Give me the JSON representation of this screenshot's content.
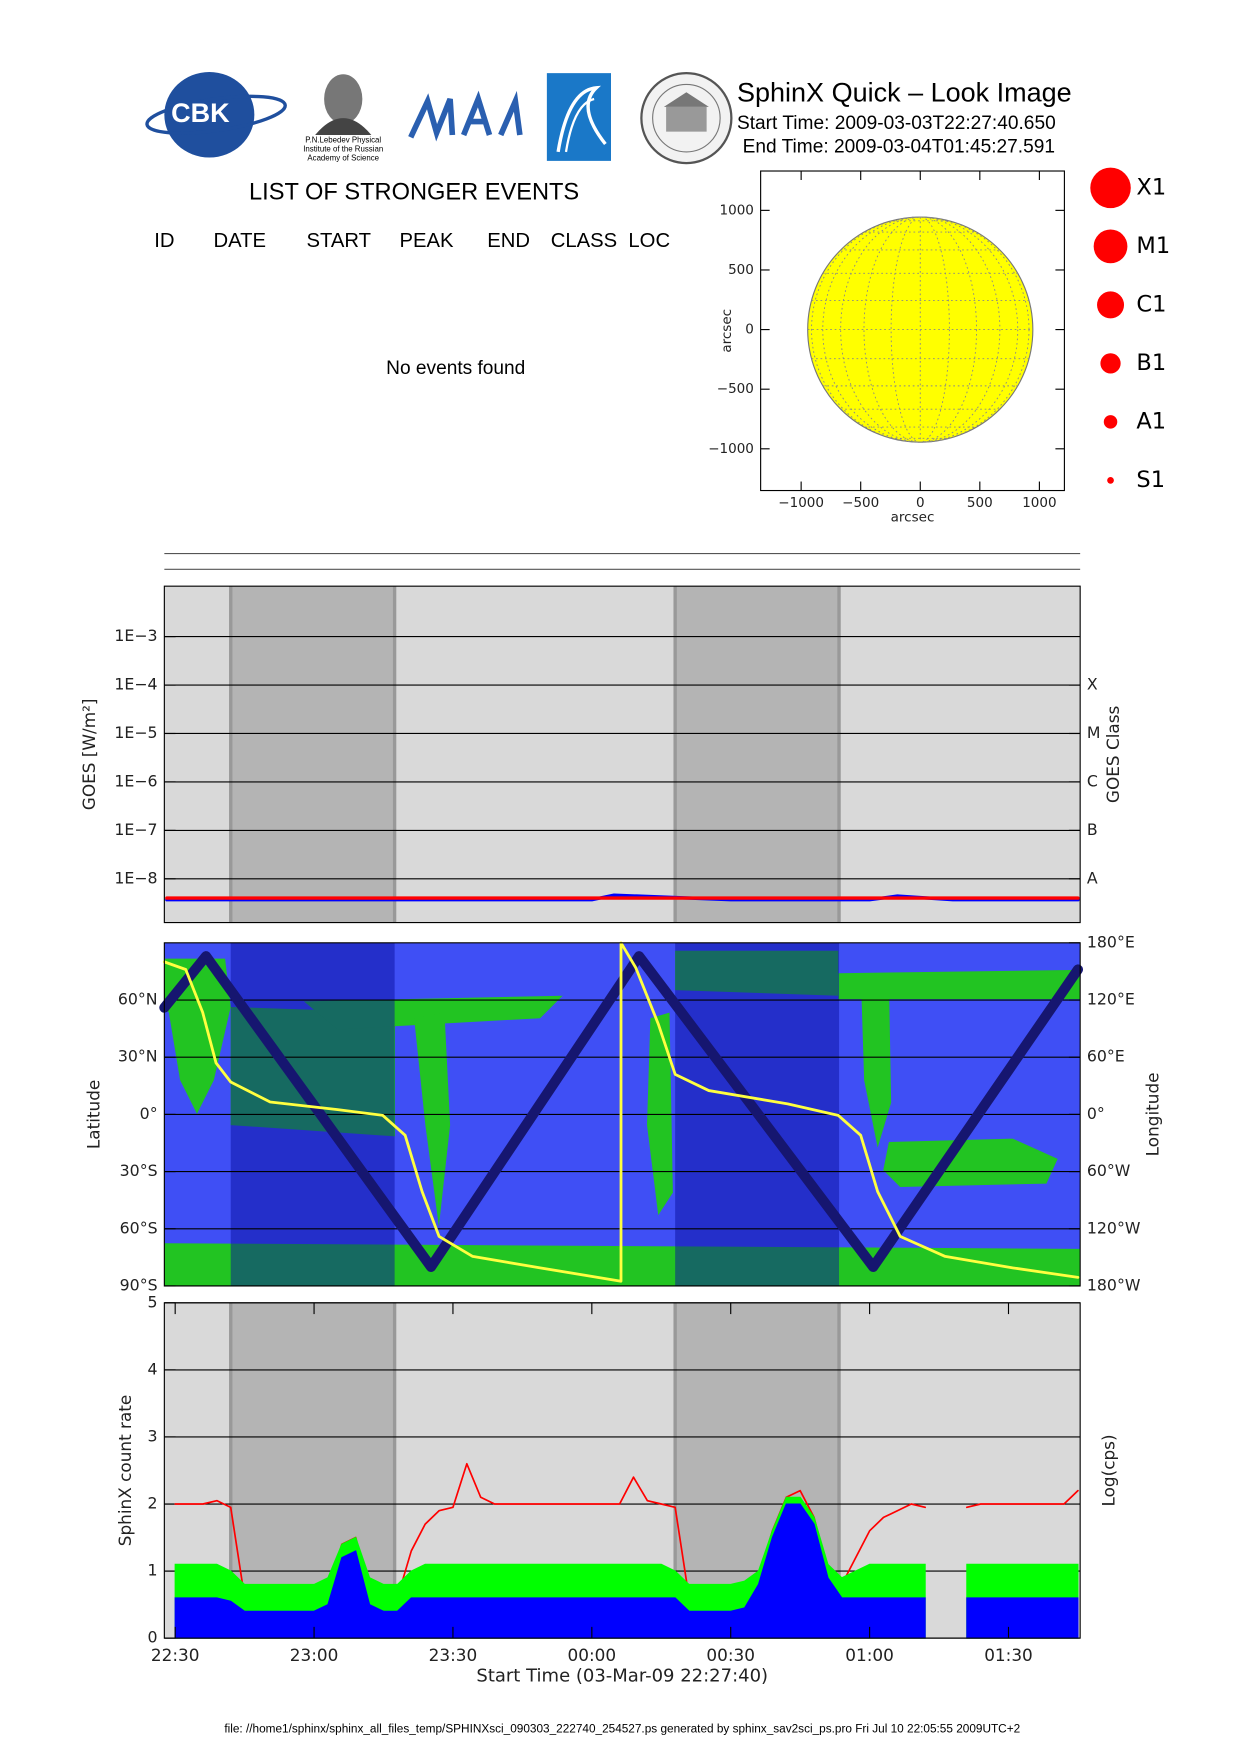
{
  "header": {
    "logo_text": [
      "CBK",
      "P.N.Lebedev Physical",
      "Institute of the Russian",
      "Academy of Science"
    ],
    "title": "SphinX Quick – Look Image",
    "start_time": "Start Time: 2009-03-03T22:27:40.650",
    "end_time": "End Time: 2009-03-04T01:45:27.591"
  },
  "events": {
    "title": "LIST OF STRONGER EVENTS",
    "columns": [
      "ID",
      "DATE",
      "START",
      "PEAK",
      "END",
      "CLASS",
      "LOC"
    ],
    "message": "No events found"
  },
  "chart_data": [
    {
      "type": "disk",
      "xlabel": "arcsec",
      "ylabel": "arcsec",
      "xlim": [
        -1340,
        1210
      ],
      "ylim": [
        -1350,
        1330
      ],
      "xticks": [
        {
          "value": -1000,
          "label": "−1000"
        },
        {
          "value": -500,
          "label": "−500"
        },
        0,
        500,
        1000
      ],
      "yticks": [
        {
          "value": -1000,
          "label": "−1000"
        },
        {
          "value": -500,
          "label": "−500"
        },
        0,
        500,
        1000
      ],
      "center": [
        0,
        0
      ],
      "radius": 945,
      "color": "#ffff00",
      "legend": [
        "X1",
        "M1",
        "C1",
        "B1",
        "A1",
        "S1"
      ],
      "legend_color": "#ff0000"
    },
    {
      "type": "line",
      "ylabel": "GOES [W/m²]",
      "y2label": "GOES Class",
      "ylog": true,
      "y2log": true,
      "xlim": [
        22.461,
        25.758
      ],
      "ylim": [
        1.25e-09,
        0.011
      ],
      "yticks": [
        {
          "value": 1e-08,
          "label": "1E−8"
        },
        {
          "value": 1e-07,
          "label": "1E−7"
        },
        {
          "value": 1e-06,
          "label": "1E−6"
        },
        {
          "value": 1e-05,
          "label": "1E−5"
        },
        {
          "value": 0.0001,
          "label": "1E−4"
        },
        {
          "value": 0.001,
          "label": "1E−3"
        }
      ],
      "y2lim": [
        1.25e-09,
        0.011
      ],
      "y2ticks": [
        {
          "value": 1e-08,
          "label": "A"
        },
        {
          "value": 1e-07,
          "label": "B"
        },
        {
          "value": 1e-06,
          "label": "C"
        },
        {
          "value": 1e-05,
          "label": "M"
        },
        {
          "value": 0.0001,
          "label": "X"
        }
      ],
      "grid": true,
      "background": "#d9d9d9",
      "shade_color": "#b4b4b4",
      "shade_opacity": 1,
      "shade_edge": "#999999",
      "shaded": [
        [
          22.7,
          23.29
        ],
        [
          24.3,
          24.89
        ]
      ],
      "x": [
        22.47,
        23.0,
        23.5,
        24.0,
        24.08,
        24.5,
        25.0,
        25.1,
        25.3,
        25.75
      ],
      "series": [
        {
          "color": "#0000ff",
          "values": [
            3.7e-09,
            3.7e-09,
            3.7e-09,
            3.7e-09,
            4.6e-09,
            3.7e-09,
            3.7e-09,
            4.4e-09,
            3.7e-09,
            3.7e-09
          ]
        },
        {
          "color": "#ff0000",
          "values": [
            4e-09,
            4e-09,
            4e-09,
            4e-09,
            4e-09,
            4e-09,
            4e-09,
            4e-09,
            4e-09,
            4e-09
          ]
        }
      ]
    },
    {
      "type": "line",
      "ylabel": "Latitude",
      "y2label": "Longitude",
      "xlim": [
        22.461,
        25.758
      ],
      "ylim": [
        -90,
        90
      ],
      "yticks": [
        {
          "value": -90,
          "label": "90°S"
        },
        {
          "value": -60,
          "label": "60°S"
        },
        {
          "value": -30,
          "label": "30°S"
        },
        {
          "value": 0,
          "label": "0°"
        },
        {
          "value": 30,
          "label": "30°N"
        },
        {
          "value": 60,
          "label": "60°N"
        }
      ],
      "y2lim": [
        -180,
        180
      ],
      "y2ticks": [
        {
          "value": -180,
          "label": "180°W"
        },
        {
          "value": -120,
          "label": "120°W"
        },
        {
          "value": -60,
          "label": "60°W"
        },
        {
          "value": 0,
          "label": "0°"
        },
        {
          "value": 60,
          "label": "60°E"
        },
        {
          "value": 120,
          "label": "120°E"
        },
        {
          "value": 180,
          "label": "180°E"
        }
      ],
      "grid": true,
      "background": "#3f4ff5",
      "shade_color": "#0a10a0",
      "shade_opacity": 0.5,
      "shaded": [
        [
          22.7,
          23.29
        ],
        [
          24.3,
          24.89
        ]
      ],
      "series": [
        {
          "color": "#161670",
          "x": [
            22.461,
            22.611,
            23.421,
            24.17,
            25.013,
            25.75
          ],
          "values": [
            56,
            83,
            -80,
            83,
            -80,
            76
          ]
        },
        {
          "color": "#ffff40",
          "axis": "y2",
          "x": [
            22.461,
            22.538,
            22.599,
            22.647,
            22.7,
            22.842,
            23.085,
            23.247,
            23.328,
            23.389,
            23.45,
            23.571,
            23.814,
            24.105,
            24.105,
            24.158,
            24.239,
            24.3,
            24.421,
            24.705,
            24.887,
            24.968,
            25.029,
            25.11,
            25.272,
            25.515,
            25.75
          ],
          "values": [
            160,
            152,
            107,
            54,
            34,
            13,
            5,
            -1,
            -22,
            -81,
            -128,
            -149,
            -161,
            -175,
            180,
            154,
            95,
            42,
            25,
            11,
            -1,
            -22,
            -81,
            -128,
            -149,
            -161,
            -171
          ]
        }
      ]
    },
    {
      "type": "line",
      "ylabel": "SphinX count rate",
      "y2label": "Log(cps)",
      "xlabel": "Start Time (03-Mar-09 22:27:40)",
      "xlim": [
        22.461,
        25.758
      ],
      "xticks": [
        {
          "value": 22.5,
          "label": "22:30"
        },
        {
          "value": 23,
          "label": "23:00"
        },
        {
          "value": 23.5,
          "label": "23:30"
        },
        {
          "value": 24,
          "label": "00:00"
        },
        {
          "value": 24.5,
          "label": "00:30"
        },
        {
          "value": 25,
          "label": "01:00"
        },
        {
          "value": 25.5,
          "label": "01:30"
        }
      ],
      "ylim": [
        0,
        5
      ],
      "yticks": [
        0,
        1,
        2,
        3,
        4,
        5
      ],
      "grid": true,
      "background": "#d9d9d9",
      "shade_color": "#b4b4b4",
      "shade_opacity": 1,
      "shade_edge": "#999999",
      "shaded": [
        [
          22.7,
          23.29
        ],
        [
          24.3,
          24.89
        ]
      ],
      "x": [
        22.5,
        22.55,
        22.6,
        22.65,
        22.7,
        22.75,
        22.8,
        22.85,
        22.9,
        22.95,
        23,
        23.05,
        23.1,
        23.15,
        23.2,
        23.25,
        23.3,
        23.35,
        23.4,
        23.45,
        23.5,
        23.55,
        23.6,
        23.65,
        23.7,
        23.75,
        23.8,
        23.85,
        23.9,
        23.95,
        24,
        24.05,
        24.1,
        24.15,
        24.2,
        24.25,
        24.3,
        24.35,
        24.4,
        24.45,
        24.5,
        24.55,
        24.6,
        24.65,
        24.7,
        24.75,
        24.8,
        24.85,
        24.9,
        24.95,
        25,
        25.05,
        25.1,
        25.15,
        25.2,
        25.25,
        25.3,
        25.35,
        25.4,
        25.45,
        25.5,
        25.55,
        25.6,
        25.65,
        25.7,
        25.75
      ],
      "series": [
        {
          "color": "#ff0000",
          "values": [
            2.0,
            2.0,
            2.0,
            2.05,
            1.95,
            0.6,
            0.5,
            0.5,
            0.5,
            0.5,
            0.55,
            0.7,
            1.4,
            1.5,
            0.7,
            0.5,
            0.6,
            1.3,
            1.7,
            1.9,
            1.95,
            2.6,
            2.1,
            2.0,
            2.0,
            2.0,
            2.0,
            2.0,
            2.0,
            2.0,
            2.0,
            2.0,
            2.0,
            2.4,
            2.05,
            2.0,
            1.95,
            0.6,
            0.5,
            0.5,
            0.5,
            0.6,
            0.9,
            1.6,
            2.1,
            2.2,
            1.8,
            1.0,
            0.8,
            1.2,
            1.6,
            1.8,
            1.9,
            2.0,
            1.95,
            null,
            null,
            1.95,
            2.0,
            2.0,
            2.0,
            2.0,
            2.0,
            2.0,
            2.0,
            2.2
          ]
        },
        {
          "color": "#00ff00",
          "fill": true,
          "values": [
            1.1,
            1.1,
            1.1,
            1.1,
            1.0,
            0.8,
            0.8,
            0.8,
            0.8,
            0.8,
            0.8,
            0.9,
            1.4,
            1.5,
            0.9,
            0.8,
            0.8,
            1.0,
            1.1,
            1.1,
            1.1,
            1.1,
            1.1,
            1.1,
            1.1,
            1.1,
            1.1,
            1.1,
            1.1,
            1.1,
            1.1,
            1.1,
            1.1,
            1.1,
            1.1,
            1.1,
            1.0,
            0.8,
            0.8,
            0.8,
            0.8,
            0.85,
            1.0,
            1.6,
            2.1,
            2.1,
            1.8,
            1.1,
            0.9,
            1.0,
            1.1,
            1.1,
            1.1,
            1.1,
            1.1,
            null,
            null,
            1.1,
            1.1,
            1.1,
            1.1,
            1.1,
            1.1,
            1.1,
            1.1,
            1.1
          ]
        },
        {
          "color": "#0000ff",
          "fill": true,
          "values": [
            0.6,
            0.6,
            0.6,
            0.6,
            0.55,
            0.4,
            0.4,
            0.4,
            0.4,
            0.4,
            0.4,
            0.5,
            1.2,
            1.3,
            0.5,
            0.4,
            0.4,
            0.6,
            0.6,
            0.6,
            0.6,
            0.6,
            0.6,
            0.6,
            0.6,
            0.6,
            0.6,
            0.6,
            0.6,
            0.6,
            0.6,
            0.6,
            0.6,
            0.6,
            0.6,
            0.6,
            0.6,
            0.4,
            0.4,
            0.4,
            0.4,
            0.45,
            0.8,
            1.5,
            2.0,
            2.0,
            1.7,
            0.9,
            0.6,
            0.6,
            0.6,
            0.6,
            0.6,
            0.6,
            0.6,
            null,
            null,
            0.6,
            0.6,
            0.6,
            0.6,
            0.6,
            0.6,
            0.6,
            0.6,
            0.6
          ]
        }
      ]
    }
  ],
  "footer": "file: //home1/sphinx/sphinx_all_files_temp/SPHINXsci_090303_222740_254527.ps generated by sphinx_sav2sci_ps.pro Fri Jul 10 22:05:55 2009UTC+2"
}
